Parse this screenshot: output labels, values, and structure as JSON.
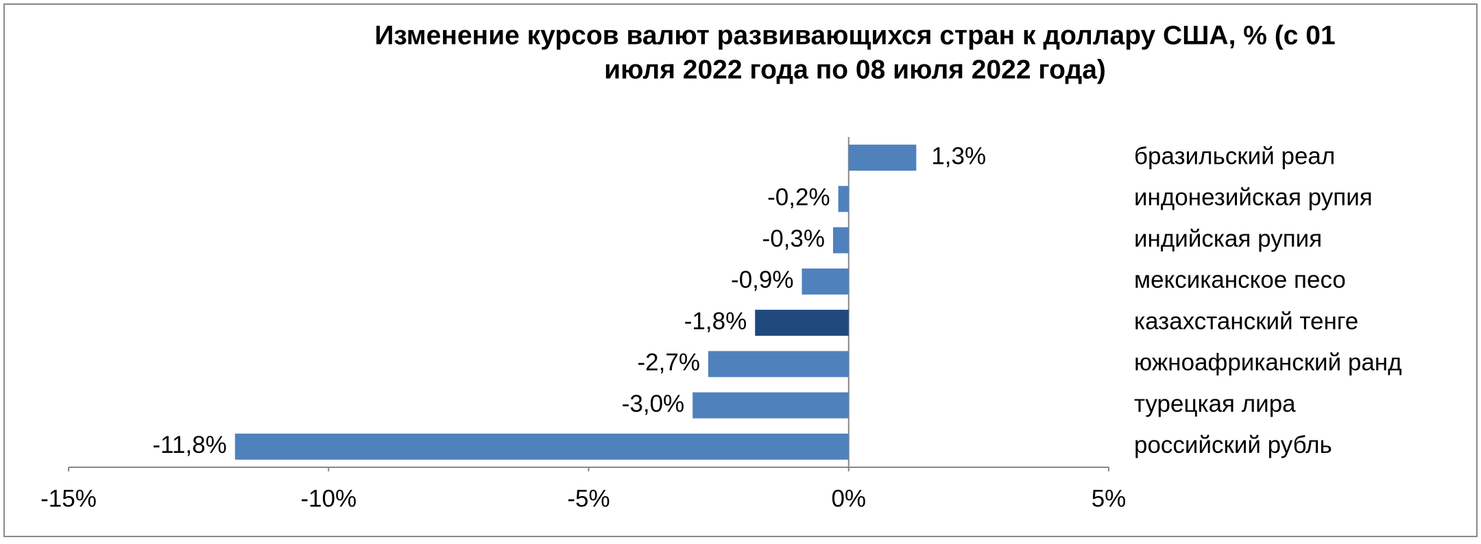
{
  "chart_data": {
    "type": "hbar",
    "title": [
      "Изменение курсов валют развивающихся стран к доллару США, % (с 01",
      "июля 2022 года по 08 июля 2022 года)"
    ],
    "categories": [
      "бразильский реал",
      "индонезийская рупия",
      "индийская рупия",
      "мексиканское песо",
      "казахстанский тенге",
      "южноафриканский ранд",
      "турецкая лира",
      "российский рубль"
    ],
    "values": [
      1.3,
      -0.2,
      -0.3,
      -0.9,
      -1.8,
      -2.7,
      -3.0,
      -11.8
    ],
    "value_labels": [
      "1,3%",
      "-0,2%",
      "-0,3%",
      "-0,9%",
      "-1,8%",
      "-2,7%",
      "-3,0%",
      "-11,8%"
    ],
    "colors": [
      "#4f81bd",
      "#4f81bd",
      "#4f81bd",
      "#4f81bd",
      "#1f497d",
      "#4f81bd",
      "#4f81bd",
      "#4f81bd"
    ],
    "xlim": [
      -15,
      5
    ],
    "xticks": [
      {
        "value": -15,
        "label": "-15%"
      },
      {
        "value": -10,
        "label": "-10%"
      },
      {
        "value": -5,
        "label": "-5%"
      },
      {
        "value": 0,
        "label": "0%"
      },
      {
        "value": 5,
        "label": "5%"
      }
    ]
  }
}
